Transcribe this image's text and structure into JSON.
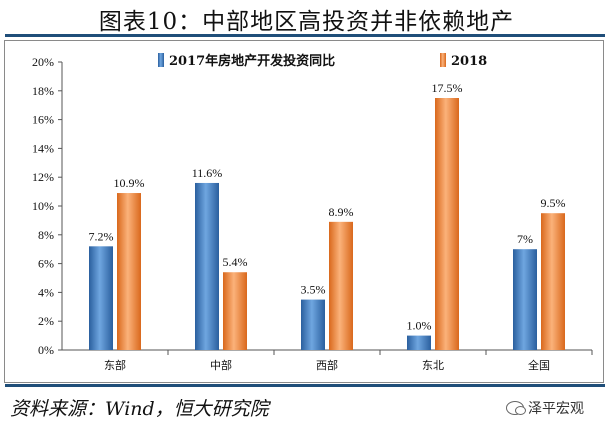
{
  "title": "图表10：中部地区高投资并非依赖地产",
  "source": "资料来源：Wind，恒大研究院",
  "watermark": {
    "text": "泽平宏观",
    "icon": "wechat-icon"
  },
  "colors": {
    "rule": "#1f4e79",
    "series_2017": "#3f7fc4",
    "series_2018": "#f08a3c"
  },
  "chart_data": {
    "type": "bar",
    "title": "",
    "xlabel": "",
    "ylabel": "",
    "categories": [
      "东部",
      "中部",
      "西部",
      "东北",
      "全国"
    ],
    "series": [
      {
        "name": "2017年房地产开发投资同比",
        "values": [
          7.2,
          11.6,
          3.5,
          1.0,
          7.0
        ],
        "labels": [
          "7.2%",
          "11.6%",
          "3.5%",
          "1.0%",
          "7%"
        ]
      },
      {
        "name": "2018",
        "values": [
          10.9,
          5.4,
          8.9,
          17.5,
          9.5
        ],
        "labels": [
          "10.9%",
          "5.4%",
          "8.9%",
          "17.5%",
          "9.5%"
        ]
      }
    ],
    "ylim": [
      0,
      20
    ],
    "yticks": [
      0,
      2,
      4,
      6,
      8,
      10,
      12,
      14,
      16,
      18,
      20
    ],
    "ytick_labels": [
      "0%",
      "2%",
      "4%",
      "6%",
      "8%",
      "10%",
      "12%",
      "14%",
      "16%",
      "18%",
      "20%"
    ],
    "legend_position": "top",
    "grid": false
  }
}
